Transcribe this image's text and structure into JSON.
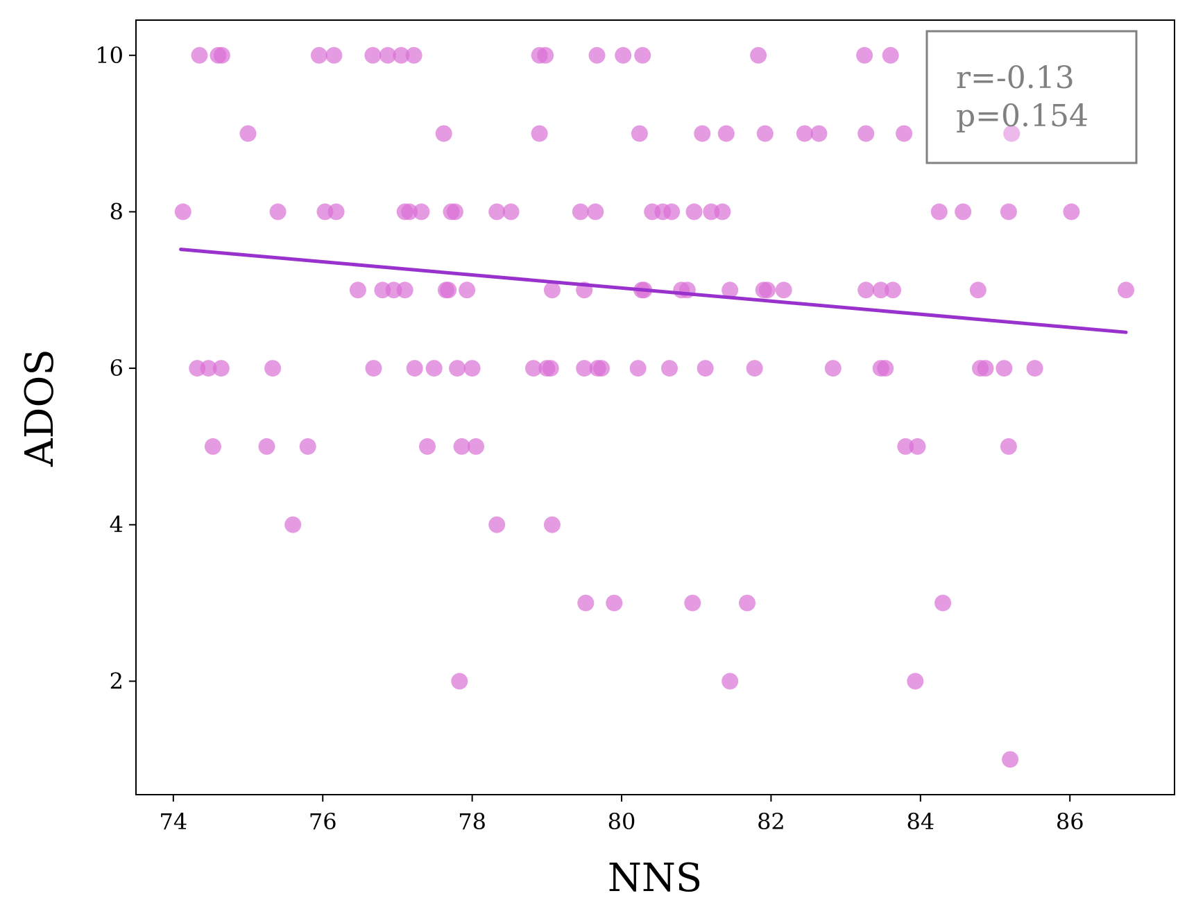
{
  "chart_data": {
    "type": "scatter",
    "xlabel": "NNS",
    "ylabel": "ADOS",
    "xlim": [
      73.5,
      87.4
    ],
    "ylim": [
      0.55,
      10.45
    ],
    "xticks": [
      74,
      76,
      78,
      80,
      82,
      84,
      86
    ],
    "yticks": [
      2,
      4,
      6,
      8,
      10
    ],
    "grid": false,
    "annotation": {
      "r_text": "r=-0.13",
      "p_text": "p=0.154",
      "placement": "top-right"
    },
    "colors": {
      "points": "#da70d6",
      "line": "#9932cc",
      "annotation": "#808080"
    },
    "regression": {
      "x": [
        74.1,
        86.75
      ],
      "y": [
        7.52,
        6.46
      ]
    },
    "points": [
      {
        "x": 74.35,
        "y": 10
      },
      {
        "x": 74.6,
        "y": 10
      },
      {
        "x": 74.65,
        "y": 10
      },
      {
        "x": 75.95,
        "y": 10
      },
      {
        "x": 76.15,
        "y": 10
      },
      {
        "x": 76.67,
        "y": 10
      },
      {
        "x": 76.87,
        "y": 10
      },
      {
        "x": 77.05,
        "y": 10
      },
      {
        "x": 77.22,
        "y": 10
      },
      {
        "x": 78.9,
        "y": 10
      },
      {
        "x": 78.98,
        "y": 10
      },
      {
        "x": 79.67,
        "y": 10
      },
      {
        "x": 80.02,
        "y": 10
      },
      {
        "x": 80.28,
        "y": 10
      },
      {
        "x": 81.83,
        "y": 10
      },
      {
        "x": 83.25,
        "y": 10
      },
      {
        "x": 83.6,
        "y": 10
      },
      {
        "x": 75.0,
        "y": 9
      },
      {
        "x": 77.62,
        "y": 9
      },
      {
        "x": 78.9,
        "y": 9
      },
      {
        "x": 80.24,
        "y": 9
      },
      {
        "x": 81.08,
        "y": 9
      },
      {
        "x": 81.4,
        "y": 9
      },
      {
        "x": 81.92,
        "y": 9
      },
      {
        "x": 82.45,
        "y": 9
      },
      {
        "x": 82.64,
        "y": 9
      },
      {
        "x": 83.27,
        "y": 9
      },
      {
        "x": 83.78,
        "y": 9
      },
      {
        "x": 85.22,
        "y": 9
      },
      {
        "x": 74.13,
        "y": 8
      },
      {
        "x": 75.4,
        "y": 8
      },
      {
        "x": 76.03,
        "y": 8
      },
      {
        "x": 76.18,
        "y": 8
      },
      {
        "x": 77.1,
        "y": 8
      },
      {
        "x": 77.16,
        "y": 8
      },
      {
        "x": 77.32,
        "y": 8
      },
      {
        "x": 77.72,
        "y": 8
      },
      {
        "x": 77.77,
        "y": 8
      },
      {
        "x": 78.33,
        "y": 8
      },
      {
        "x": 78.52,
        "y": 8
      },
      {
        "x": 79.45,
        "y": 8
      },
      {
        "x": 79.65,
        "y": 8
      },
      {
        "x": 80.41,
        "y": 8
      },
      {
        "x": 80.55,
        "y": 8
      },
      {
        "x": 80.67,
        "y": 8
      },
      {
        "x": 80.97,
        "y": 8
      },
      {
        "x": 81.2,
        "y": 8
      },
      {
        "x": 81.35,
        "y": 8
      },
      {
        "x": 84.25,
        "y": 8
      },
      {
        "x": 84.57,
        "y": 8
      },
      {
        "x": 85.18,
        "y": 8
      },
      {
        "x": 86.02,
        "y": 8
      },
      {
        "x": 76.47,
        "y": 7
      },
      {
        "x": 76.8,
        "y": 7
      },
      {
        "x": 76.95,
        "y": 7
      },
      {
        "x": 77.1,
        "y": 7
      },
      {
        "x": 77.65,
        "y": 7
      },
      {
        "x": 77.68,
        "y": 7
      },
      {
        "x": 77.93,
        "y": 7
      },
      {
        "x": 79.07,
        "y": 7
      },
      {
        "x": 79.5,
        "y": 7
      },
      {
        "x": 80.27,
        "y": 7
      },
      {
        "x": 80.3,
        "y": 7
      },
      {
        "x": 80.8,
        "y": 7
      },
      {
        "x": 80.88,
        "y": 7
      },
      {
        "x": 81.45,
        "y": 7
      },
      {
        "x": 81.9,
        "y": 7
      },
      {
        "x": 81.95,
        "y": 7
      },
      {
        "x": 82.17,
        "y": 7
      },
      {
        "x": 83.27,
        "y": 7
      },
      {
        "x": 83.47,
        "y": 7
      },
      {
        "x": 83.63,
        "y": 7
      },
      {
        "x": 84.77,
        "y": 7
      },
      {
        "x": 86.75,
        "y": 7
      },
      {
        "x": 74.32,
        "y": 6
      },
      {
        "x": 74.47,
        "y": 6
      },
      {
        "x": 74.64,
        "y": 6
      },
      {
        "x": 75.33,
        "y": 6
      },
      {
        "x": 76.68,
        "y": 6
      },
      {
        "x": 77.23,
        "y": 6
      },
      {
        "x": 77.49,
        "y": 6
      },
      {
        "x": 77.8,
        "y": 6
      },
      {
        "x": 78.0,
        "y": 6
      },
      {
        "x": 78.82,
        "y": 6
      },
      {
        "x": 79.0,
        "y": 6
      },
      {
        "x": 79.05,
        "y": 6
      },
      {
        "x": 79.5,
        "y": 6
      },
      {
        "x": 79.68,
        "y": 6
      },
      {
        "x": 79.73,
        "y": 6
      },
      {
        "x": 80.22,
        "y": 6
      },
      {
        "x": 80.64,
        "y": 6
      },
      {
        "x": 81.12,
        "y": 6
      },
      {
        "x": 81.78,
        "y": 6
      },
      {
        "x": 82.83,
        "y": 6
      },
      {
        "x": 83.47,
        "y": 6
      },
      {
        "x": 83.53,
        "y": 6
      },
      {
        "x": 84.8,
        "y": 6
      },
      {
        "x": 84.87,
        "y": 6
      },
      {
        "x": 85.12,
        "y": 6
      },
      {
        "x": 85.53,
        "y": 6
      },
      {
        "x": 74.53,
        "y": 5
      },
      {
        "x": 75.25,
        "y": 5
      },
      {
        "x": 75.8,
        "y": 5
      },
      {
        "x": 77.4,
        "y": 5
      },
      {
        "x": 77.86,
        "y": 5
      },
      {
        "x": 78.05,
        "y": 5
      },
      {
        "x": 83.8,
        "y": 5
      },
      {
        "x": 83.96,
        "y": 5
      },
      {
        "x": 85.18,
        "y": 5
      },
      {
        "x": 75.6,
        "y": 4
      },
      {
        "x": 78.33,
        "y": 4
      },
      {
        "x": 79.07,
        "y": 4
      },
      {
        "x": 79.52,
        "y": 3
      },
      {
        "x": 79.9,
        "y": 3
      },
      {
        "x": 80.95,
        "y": 3
      },
      {
        "x": 81.68,
        "y": 3
      },
      {
        "x": 84.3,
        "y": 3
      },
      {
        "x": 77.83,
        "y": 2
      },
      {
        "x": 81.45,
        "y": 2
      },
      {
        "x": 83.93,
        "y": 2
      },
      {
        "x": 85.2,
        "y": 1
      }
    ]
  }
}
